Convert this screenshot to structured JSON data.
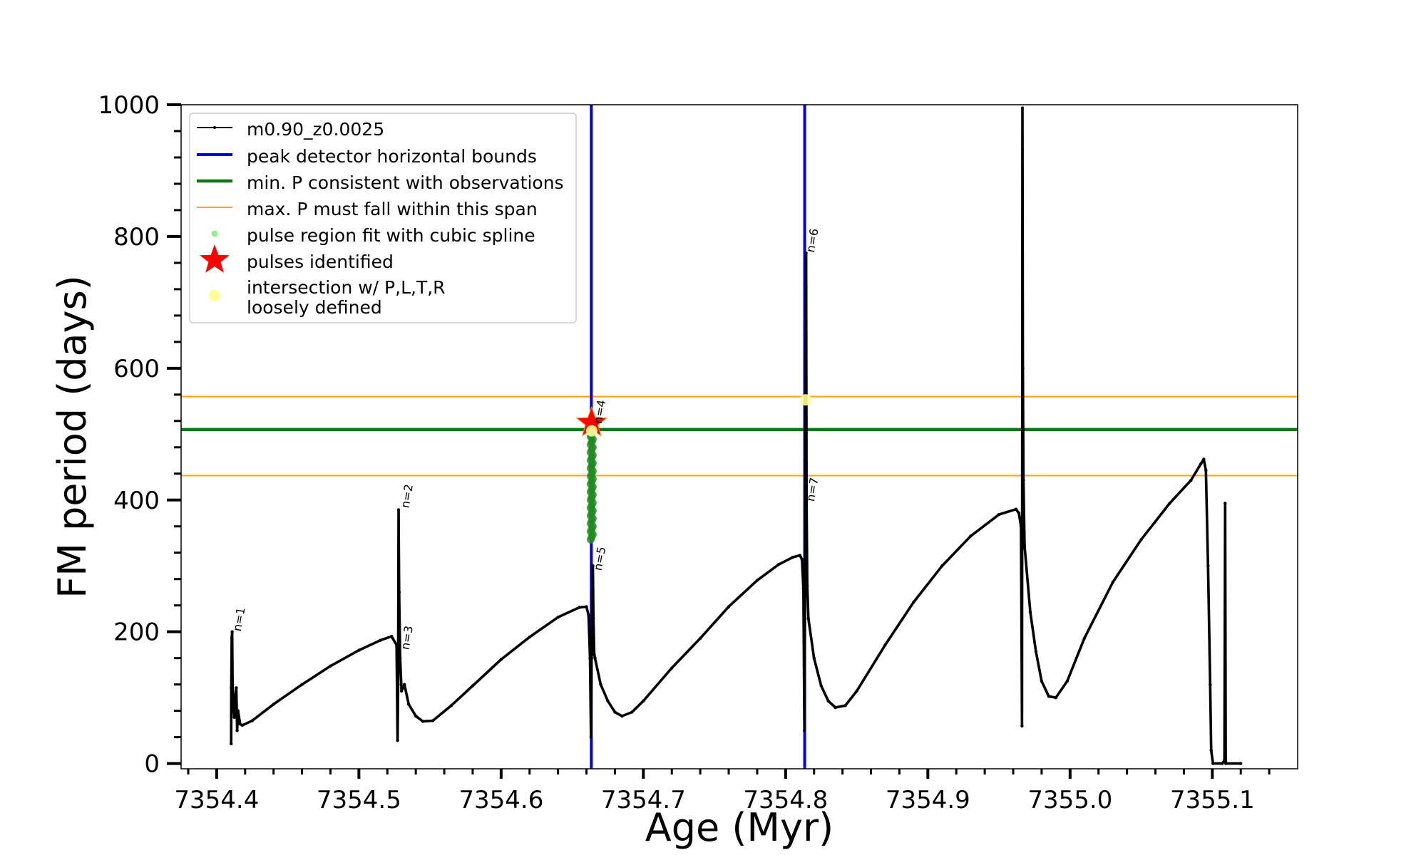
{
  "chart_data": {
    "type": "line",
    "title": "",
    "xlabel": "Age (Myr)",
    "ylabel": "FM period (days)",
    "xlim": [
      7354.375,
      7355.16
    ],
    "ylim": [
      -8,
      1000
    ],
    "x_ticks": [
      7354.4,
      7354.5,
      7354.6,
      7354.7,
      7354.8,
      7354.9,
      7355.0,
      7355.1
    ],
    "x_tick_labels": [
      "7354.4",
      "7354.5",
      "7354.6",
      "7354.7",
      "7354.8",
      "7354.9",
      "7355.0",
      "7355.1"
    ],
    "y_ticks": [
      0,
      200,
      400,
      600,
      800,
      1000
    ],
    "y_tick_labels": [
      "0",
      "200",
      "400",
      "600",
      "800",
      "1000"
    ],
    "grid": false,
    "legend_position": "upper-left",
    "series": [
      {
        "name": "m0.90_z0.0025",
        "kind": "line",
        "color": "#000000",
        "points": [
          [
            7354.4102,
            30
          ],
          [
            7354.4103,
            115
          ],
          [
            7354.4106,
            190
          ],
          [
            7354.4109,
            200
          ],
          [
            7354.4112,
            120
          ],
          [
            7354.4118,
            85
          ],
          [
            7354.4124,
            70
          ],
          [
            7354.413,
            100
          ],
          [
            7354.4138,
            115
          ],
          [
            7354.4144,
            50
          ],
          [
            7354.415,
            80
          ],
          [
            7354.4165,
            60
          ],
          [
            7354.418,
            58
          ],
          [
            7354.425,
            65
          ],
          [
            7354.44,
            90
          ],
          [
            7354.46,
            120
          ],
          [
            7354.48,
            148
          ],
          [
            7354.5,
            172
          ],
          [
            7354.515,
            187
          ],
          [
            7354.523,
            193
          ],
          [
            7354.5265,
            180
          ],
          [
            7354.5272,
            35
          ],
          [
            7354.5276,
            120
          ],
          [
            7354.5279,
            385
          ],
          [
            7354.5283,
            260
          ],
          [
            7354.529,
            160
          ],
          [
            7354.53,
            110
          ],
          [
            7354.532,
            120
          ],
          [
            7354.535,
            90
          ],
          [
            7354.54,
            72
          ],
          [
            7354.545,
            64
          ],
          [
            7354.552,
            65
          ],
          [
            7354.565,
            88
          ],
          [
            7354.58,
            118
          ],
          [
            7354.6,
            158
          ],
          [
            7354.62,
            192
          ],
          [
            7354.64,
            222
          ],
          [
            7354.655,
            237
          ],
          [
            7354.66,
            238
          ],
          [
            7354.6615,
            225
          ],
          [
            7354.6625,
            160
          ],
          [
            7354.6632,
            40
          ],
          [
            7354.6636,
            160
          ],
          [
            7354.6641,
            260
          ],
          [
            7354.6645,
            300
          ],
          [
            7354.6649,
            220
          ],
          [
            7354.6655,
            165
          ],
          [
            7354.666,
            160
          ],
          [
            7354.67,
            120
          ],
          [
            7354.675,
            95
          ],
          [
            7354.68,
            78
          ],
          [
            7354.685,
            72
          ],
          [
            7354.692,
            78
          ],
          [
            7354.7,
            95
          ],
          [
            7354.72,
            145
          ],
          [
            7354.74,
            190
          ],
          [
            7354.76,
            238
          ],
          [
            7354.78,
            278
          ],
          [
            7354.795,
            302
          ],
          [
            7354.805,
            313
          ],
          [
            7354.81,
            316
          ],
          [
            7354.8115,
            310
          ],
          [
            7354.8125,
            265
          ],
          [
            7354.8132,
            50
          ],
          [
            7354.8137,
            300
          ],
          [
            7354.8141,
            560
          ],
          [
            7354.8144,
            775
          ],
          [
            7354.8147,
            400
          ],
          [
            7354.8152,
            270
          ],
          [
            7354.816,
            220
          ],
          [
            7354.82,
            160
          ],
          [
            7354.825,
            118
          ],
          [
            7354.83,
            95
          ],
          [
            7354.835,
            85
          ],
          [
            7354.842,
            88
          ],
          [
            7354.85,
            110
          ],
          [
            7354.87,
            180
          ],
          [
            7354.89,
            245
          ],
          [
            7354.91,
            300
          ],
          [
            7354.93,
            345
          ],
          [
            7354.95,
            378
          ],
          [
            7354.962,
            386
          ],
          [
            7354.964,
            380
          ],
          [
            7354.9655,
            360
          ],
          [
            7354.9662,
            57
          ],
          [
            7354.9665,
            995
          ],
          [
            7354.9668,
            600
          ],
          [
            7354.9672,
            430
          ],
          [
            7354.968,
            330
          ],
          [
            7354.972,
            230
          ],
          [
            7354.976,
            170
          ],
          [
            7354.98,
            125
          ],
          [
            7354.985,
            102
          ],
          [
            7354.99,
            100
          ],
          [
            7354.998,
            125
          ],
          [
            7355.01,
            190
          ],
          [
            7355.03,
            275
          ],
          [
            7355.05,
            340
          ],
          [
            7355.07,
            395
          ],
          [
            7355.085,
            430
          ],
          [
            7355.092,
            455
          ],
          [
            7355.094,
            462
          ],
          [
            7355.0955,
            445
          ],
          [
            7355.097,
            300
          ],
          [
            7355.0985,
            120
          ],
          [
            7355.0992,
            20
          ],
          [
            7355.1005,
            0
          ],
          [
            7355.107,
            0
          ],
          [
            7355.1085,
            5
          ],
          [
            7355.109,
            395
          ],
          [
            7355.1094,
            5
          ],
          [
            7355.1095,
            0
          ],
          [
            7355.12,
            0
          ]
        ]
      },
      {
        "name": "peak detector horizontal bounds",
        "kind": "vline",
        "color": "#0000dd",
        "x": [
          7354.6634,
          7354.8134
        ]
      },
      {
        "name": "min. P consistent with observations",
        "kind": "hline",
        "color": "#117711",
        "y": [
          507
        ]
      },
      {
        "name": "max. P must fall within this span",
        "kind": "hline",
        "color": "#ffa500",
        "y": [
          437,
          557
        ]
      },
      {
        "name": "pulse region fit with cubic spline",
        "kind": "scatter",
        "color": "#90ee90",
        "x": 7354.6637,
        "y_range": [
          340,
          500
        ]
      },
      {
        "name": "pulses identified",
        "kind": "star",
        "color": "#ff0000",
        "points": [
          [
            7354.6636,
            517
          ]
        ]
      },
      {
        "name": "intersection w/ P,L,T,R\nloosely defined",
        "kind": "scatter",
        "color": "#ffff99",
        "points": [
          [
            7354.6637,
            505
          ],
          [
            7354.8141,
            552
          ]
        ]
      }
    ],
    "pulse_annotations": [
      {
        "label": "n=1",
        "x": 7354.412,
        "y": 200
      },
      {
        "label": "n=2",
        "x": 7354.53,
        "y": 387
      },
      {
        "label": "n=3",
        "x": 7354.53,
        "y": 172
      },
      {
        "label": "n=4",
        "x": 7354.6655,
        "y": 515
      },
      {
        "label": "n=5",
        "x": 7354.6655,
        "y": 292
      },
      {
        "label": "n=6",
        "x": 7354.815,
        "y": 775
      },
      {
        "label": "n=7",
        "x": 7354.815,
        "y": 397
      }
    ]
  }
}
